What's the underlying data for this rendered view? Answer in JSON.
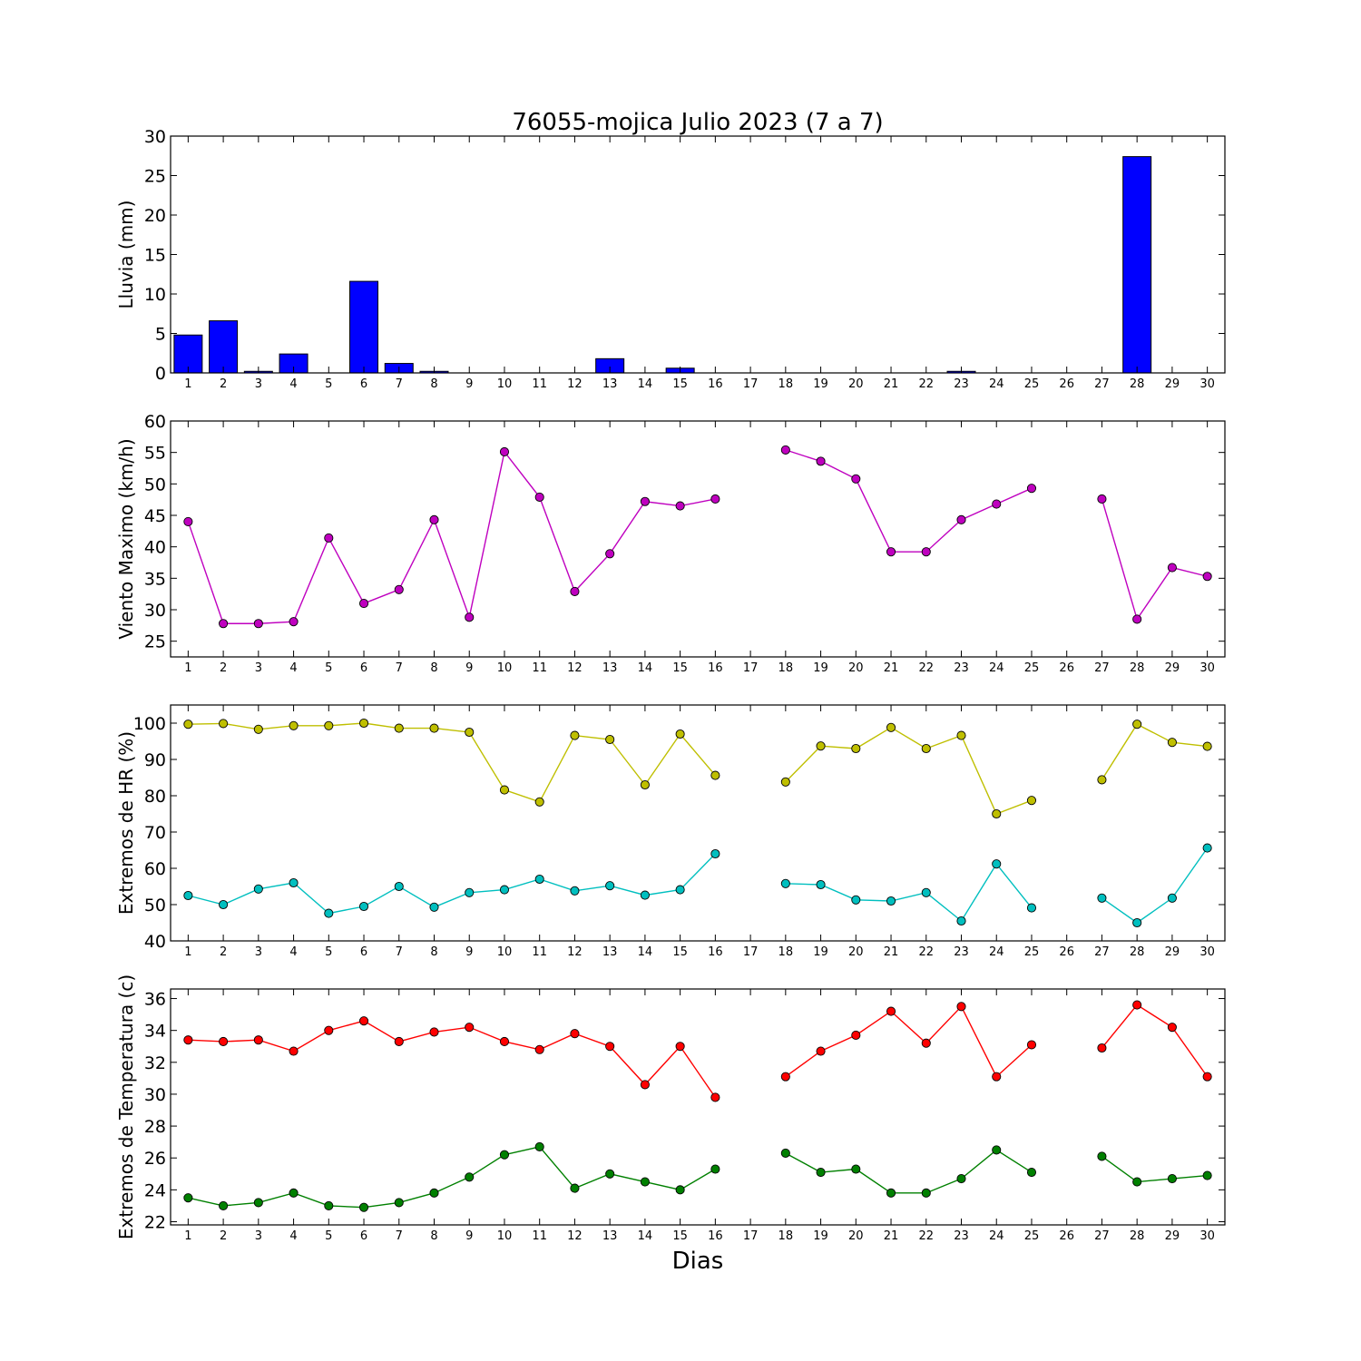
{
  "title": "76055-mojica Julio 2023  (7 a 7)",
  "xlabel": "Dias",
  "days": [
    1,
    2,
    3,
    4,
    5,
    6,
    7,
    8,
    9,
    10,
    11,
    12,
    13,
    14,
    15,
    16,
    17,
    18,
    19,
    20,
    21,
    22,
    23,
    24,
    25,
    26,
    27,
    28,
    29,
    30
  ],
  "colors": {
    "rain": "#0000ff",
    "wind": "#bf00bf",
    "hr_max": "#bfbf00",
    "hr_min": "#00bfbf",
    "temp_max": "#ff0000",
    "temp_min": "#008000"
  },
  "chart_data": [
    {
      "type": "bar",
      "ylabel": "Lluvia (mm)",
      "ylim": [
        0,
        30
      ],
      "yticks": [
        0,
        5,
        10,
        15,
        20,
        25,
        30
      ],
      "xlim": [
        0.5,
        30.5
      ],
      "grid": false,
      "series": [
        {
          "color": "#0000ff",
          "values": [
            4.8,
            6.6,
            0.2,
            2.4,
            0.0,
            11.6,
            1.2,
            0.2,
            0.0,
            0.0,
            0.0,
            0.0,
            1.8,
            0.0,
            0.6,
            0.0,
            0.0,
            0.0,
            0.0,
            0.0,
            0.0,
            0.0,
            0.2,
            0.0,
            0.0,
            0.0,
            0.0,
            27.4,
            0.0,
            0.0
          ]
        }
      ]
    },
    {
      "type": "line",
      "ylabel": "Viento Maximo (km/h)",
      "ylim": [
        22.5,
        60
      ],
      "yticks": [
        25,
        30,
        35,
        40,
        45,
        50,
        55,
        60
      ],
      "xlim": [
        0.5,
        30.5
      ],
      "grid": false,
      "series": [
        {
          "color": "#bf00bf",
          "values": [
            44.0,
            27.8,
            27.8,
            28.1,
            41.4,
            31.0,
            33.2,
            44.3,
            28.8,
            55.1,
            47.9,
            32.9,
            38.9,
            47.2,
            46.5,
            47.6,
            null,
            55.4,
            53.6,
            50.8,
            39.2,
            39.2,
            44.3,
            46.8,
            49.3,
            null,
            47.6,
            28.5,
            36.7,
            35.3
          ]
        }
      ]
    },
    {
      "type": "line",
      "ylabel": "Extremos de HR (%)",
      "ylim": [
        40,
        105
      ],
      "yticks": [
        40,
        50,
        60,
        70,
        80,
        90,
        100
      ],
      "xlim": [
        0.5,
        30.5
      ],
      "grid": false,
      "series": [
        {
          "color": "#bfbf00",
          "values": [
            99.7,
            99.9,
            98.3,
            99.3,
            99.3,
            100.0,
            98.6,
            98.6,
            97.5,
            81.6,
            78.3,
            96.6,
            95.5,
            83.0,
            97.0,
            85.6,
            null,
            83.8,
            93.7,
            93.0,
            98.8,
            93.0,
            96.6,
            75.0,
            78.7,
            null,
            84.4,
            99.7,
            94.7,
            93.6
          ]
        },
        {
          "color": "#00bfbf",
          "values": [
            52.5,
            50.0,
            54.3,
            56.0,
            47.6,
            49.5,
            55.0,
            49.3,
            53.3,
            54.1,
            57.0,
            53.8,
            55.2,
            52.6,
            54.1,
            64.0,
            null,
            55.8,
            55.5,
            51.3,
            51.0,
            53.3,
            45.5,
            61.2,
            49.1,
            null,
            51.8,
            45.0,
            51.8,
            65.6
          ]
        }
      ]
    },
    {
      "type": "line",
      "ylabel": "Extremos de Temperatura (c)",
      "ylim": [
        21.8,
        36.6
      ],
      "yticks": [
        22,
        24,
        26,
        28,
        30,
        32,
        34,
        36
      ],
      "xlim": [
        0.5,
        30.5
      ],
      "grid": false,
      "series": [
        {
          "color": "#ff0000",
          "values": [
            33.4,
            33.3,
            33.4,
            32.7,
            34.0,
            34.6,
            33.3,
            33.9,
            34.2,
            33.3,
            32.8,
            33.8,
            33.0,
            30.6,
            33.0,
            29.8,
            null,
            31.1,
            32.7,
            33.7,
            35.2,
            33.2,
            35.5,
            31.1,
            33.1,
            null,
            32.9,
            35.6,
            34.2,
            31.1
          ]
        },
        {
          "color": "#008000",
          "values": [
            23.5,
            23.0,
            23.2,
            23.8,
            23.0,
            22.9,
            23.2,
            23.8,
            24.8,
            26.2,
            26.7,
            24.1,
            25.0,
            24.5,
            24.0,
            25.3,
            null,
            26.3,
            25.1,
            25.3,
            23.8,
            23.8,
            24.7,
            26.5,
            25.1,
            null,
            26.1,
            24.5,
            24.7,
            24.9
          ]
        }
      ]
    }
  ]
}
